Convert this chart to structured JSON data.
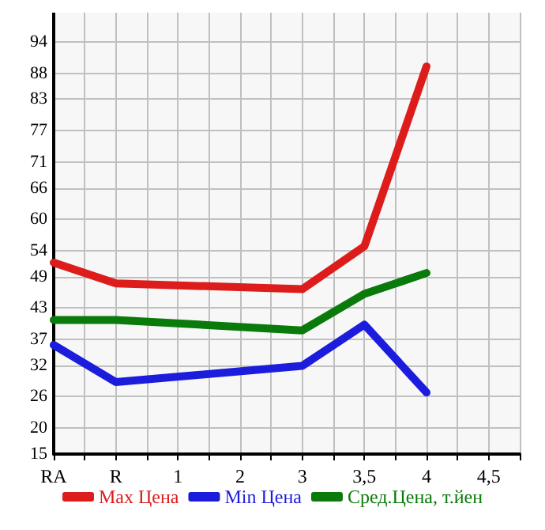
{
  "chart_data": {
    "type": "line",
    "categories": [
      "RA",
      "R",
      "1",
      "2",
      "3",
      "3,5",
      "4",
      "4,5"
    ],
    "series": [
      {
        "name": "Max Цена",
        "color": "#dd1c1c",
        "values": [
          51.7,
          47.7,
          null,
          null,
          46.6,
          54.8,
          89.3,
          null
        ]
      },
      {
        "name": "Min Цена",
        "color": "#1c1cdd",
        "values": [
          35.9,
          28.8,
          null,
          null,
          31.9,
          39.8,
          26.8,
          null
        ]
      },
      {
        "name": "Сред.Цена, т.йен",
        "color": "#0a7a0a",
        "values": [
          40.7,
          40.7,
          null,
          null,
          38.7,
          45.7,
          49.7,
          null
        ]
      }
    ],
    "ylim": [
      15,
      99.6
    ],
    "yticks": [
      15,
      20,
      26,
      32,
      37,
      43,
      49,
      54,
      60,
      66,
      71,
      77,
      83,
      88,
      94
    ],
    "grid": true,
    "legend": "bottom",
    "marker": "none",
    "line_style": "solid"
  }
}
